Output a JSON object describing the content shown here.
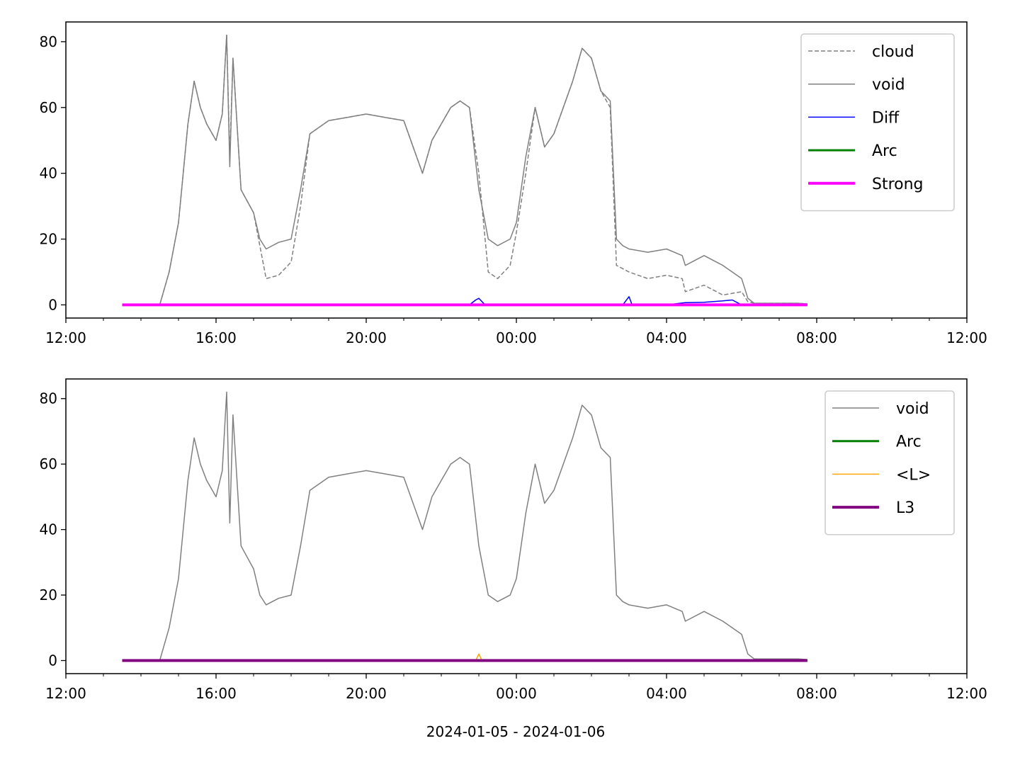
{
  "figure": {
    "xlabel": "2024-01-05 - 2024-01-06"
  },
  "chart_data": [
    {
      "type": "line",
      "title": "",
      "xlabel": "",
      "ylabel": "",
      "x_unit": "datetime",
      "xlim": [
        "2024-01-05T12:00",
        "2024-01-06T12:00"
      ],
      "ylim": [
        -4,
        86
      ],
      "x_ticks": [
        "12:00",
        "16:00",
        "20:00",
        "00:00",
        "04:00",
        "08:00",
        "12:00"
      ],
      "y_ticks": [
        0,
        20,
        40,
        60,
        80
      ],
      "grid": false,
      "legend_position": "top-right",
      "legend": [
        "cloud",
        "void",
        "Diff",
        "Arc",
        "Strong"
      ],
      "series": [
        {
          "name": "cloud",
          "color": "#808080",
          "style": "dashed",
          "x": [
            "2024-01-05T13:30",
            "2024-01-05T14:30",
            "2024-01-05T14:45",
            "2024-01-05T15:00",
            "2024-01-05T15:15",
            "2024-01-05T15:25",
            "2024-01-05T15:35",
            "2024-01-05T15:45",
            "2024-01-05T16:00",
            "2024-01-05T16:10",
            "2024-01-05T16:17",
            "2024-01-05T16:22",
            "2024-01-05T16:27",
            "2024-01-05T16:40",
            "2024-01-05T17:00",
            "2024-01-05T17:10",
            "2024-01-05T17:20",
            "2024-01-05T17:40",
            "2024-01-05T18:00",
            "2024-01-05T18:15",
            "2024-01-05T18:30",
            "2024-01-05T19:00",
            "2024-01-05T19:30",
            "2024-01-05T20:00",
            "2024-01-05T20:30",
            "2024-01-05T21:00",
            "2024-01-05T21:30",
            "2024-01-05T21:45",
            "2024-01-05T22:00",
            "2024-01-05T22:15",
            "2024-01-05T22:30",
            "2024-01-05T22:45",
            "2024-01-05T23:00",
            "2024-01-05T23:15",
            "2024-01-05T23:30",
            "2024-01-05T23:50",
            "2024-01-06T00:00",
            "2024-01-06T00:15",
            "2024-01-06T00:30",
            "2024-01-06T00:45",
            "2024-01-06T01:00",
            "2024-01-06T01:30",
            "2024-01-06T01:45",
            "2024-01-06T02:00",
            "2024-01-06T02:15",
            "2024-01-06T02:30",
            "2024-01-06T02:40",
            "2024-01-06T02:50",
            "2024-01-06T03:00",
            "2024-01-06T03:30",
            "2024-01-06T04:00",
            "2024-01-06T04:25",
            "2024-01-06T04:30",
            "2024-01-06T05:00",
            "2024-01-06T05:30",
            "2024-01-06T06:00",
            "2024-01-06T06:10",
            "2024-01-06T06:20",
            "2024-01-06T06:30",
            "2024-01-06T07:00",
            "2024-01-06T07:30",
            "2024-01-06T07:45"
          ],
          "y": [
            0,
            0,
            10,
            25,
            55,
            68,
            60,
            55,
            50,
            58,
            82,
            45,
            75,
            35,
            28,
            18,
            8,
            9,
            13,
            30,
            52,
            56,
            57,
            58,
            57,
            56,
            40,
            50,
            55,
            60,
            62,
            60,
            40,
            10,
            8,
            12,
            22,
            40,
            60,
            48,
            52,
            68,
            78,
            75,
            65,
            60,
            12,
            11,
            10,
            8,
            9,
            8,
            4,
            6,
            3,
            4,
            1,
            0.5,
            0.5,
            0.5,
            0.5,
            0.3
          ]
        },
        {
          "name": "void",
          "color": "#808080",
          "style": "solid",
          "x": [
            "2024-01-05T13:30",
            "2024-01-05T14:30",
            "2024-01-05T14:45",
            "2024-01-05T15:00",
            "2024-01-05T15:15",
            "2024-01-05T15:25",
            "2024-01-05T15:35",
            "2024-01-05T15:45",
            "2024-01-05T16:00",
            "2024-01-05T16:10",
            "2024-01-05T16:17",
            "2024-01-05T16:22",
            "2024-01-05T16:27",
            "2024-01-05T16:40",
            "2024-01-05T17:00",
            "2024-01-05T17:10",
            "2024-01-05T17:20",
            "2024-01-05T17:40",
            "2024-01-05T18:00",
            "2024-01-05T18:15",
            "2024-01-05T18:30",
            "2024-01-05T19:00",
            "2024-01-05T19:30",
            "2024-01-05T20:00",
            "2024-01-05T20:30",
            "2024-01-05T21:00",
            "2024-01-05T21:30",
            "2024-01-05T21:45",
            "2024-01-05T22:00",
            "2024-01-05T22:15",
            "2024-01-05T22:30",
            "2024-01-05T22:45",
            "2024-01-05T23:00",
            "2024-01-05T23:15",
            "2024-01-05T23:30",
            "2024-01-05T23:50",
            "2024-01-06T00:00",
            "2024-01-06T00:15",
            "2024-01-06T00:30",
            "2024-01-06T00:45",
            "2024-01-06T01:00",
            "2024-01-06T01:30",
            "2024-01-06T01:45",
            "2024-01-06T02:00",
            "2024-01-06T02:15",
            "2024-01-06T02:30",
            "2024-01-06T02:40",
            "2024-01-06T02:50",
            "2024-01-06T03:00",
            "2024-01-06T03:30",
            "2024-01-06T04:00",
            "2024-01-06T04:25",
            "2024-01-06T04:30",
            "2024-01-06T05:00",
            "2024-01-06T05:30",
            "2024-01-06T06:00",
            "2024-01-06T06:10",
            "2024-01-06T06:20",
            "2024-01-06T06:30",
            "2024-01-06T07:00",
            "2024-01-06T07:30",
            "2024-01-06T07:45"
          ],
          "y": [
            0,
            0,
            10,
            25,
            55,
            68,
            60,
            55,
            50,
            58,
            82,
            42,
            75,
            35,
            28,
            20,
            17,
            19,
            20,
            35,
            52,
            56,
            57,
            58,
            57,
            56,
            40,
            50,
            55,
            60,
            62,
            60,
            35,
            20,
            18,
            20,
            25,
            45,
            60,
            48,
            52,
            68,
            78,
            75,
            65,
            62,
            20,
            18,
            17,
            16,
            17,
            15,
            12,
            15,
            12,
            8,
            2,
            0.5,
            0.5,
            0.5,
            0.5,
            0.3
          ]
        },
        {
          "name": "Diff",
          "color": "#0000ff",
          "style": "solid",
          "x": [
            "2024-01-05T13:30",
            "2024-01-05T22:45",
            "2024-01-05T22:55",
            "2024-01-05T23:00",
            "2024-01-05T23:10",
            "2024-01-06T02:50",
            "2024-01-06T03:00",
            "2024-01-06T03:05",
            "2024-01-06T04:00",
            "2024-01-06T04:30",
            "2024-01-06T05:00",
            "2024-01-06T05:30",
            "2024-01-06T05:45",
            "2024-01-06T06:00",
            "2024-01-06T07:45"
          ],
          "y": [
            0,
            0,
            1.5,
            2,
            0,
            0,
            2.5,
            0,
            0,
            0.7,
            0.8,
            1.2,
            1.5,
            0,
            0
          ]
        },
        {
          "name": "Arc",
          "color": "#008000",
          "style": "solid",
          "x": [
            "2024-01-05T13:30",
            "2024-01-06T07:45"
          ],
          "y": [
            0,
            0
          ]
        },
        {
          "name": "Strong",
          "color": "#ff00ff",
          "style": "solid",
          "x": [
            "2024-01-05T13:30",
            "2024-01-06T07:45"
          ],
          "y": [
            0,
            0
          ]
        }
      ]
    },
    {
      "type": "line",
      "title": "",
      "xlabel": "2024-01-05 - 2024-01-06",
      "ylabel": "",
      "x_unit": "datetime",
      "xlim": [
        "2024-01-05T12:00",
        "2024-01-06T12:00"
      ],
      "ylim": [
        -4,
        86
      ],
      "x_ticks": [
        "12:00",
        "16:00",
        "20:00",
        "00:00",
        "04:00",
        "08:00",
        "12:00"
      ],
      "y_ticks": [
        0,
        20,
        40,
        60,
        80
      ],
      "grid": false,
      "legend_position": "top-right",
      "legend": [
        "void",
        "Arc",
        "<L>",
        "L3"
      ],
      "series": [
        {
          "name": "void",
          "color": "#808080",
          "style": "solid",
          "x": [
            "2024-01-05T13:30",
            "2024-01-05T14:30",
            "2024-01-05T14:45",
            "2024-01-05T15:00",
            "2024-01-05T15:15",
            "2024-01-05T15:25",
            "2024-01-05T15:35",
            "2024-01-05T15:45",
            "2024-01-05T16:00",
            "2024-01-05T16:10",
            "2024-01-05T16:17",
            "2024-01-05T16:22",
            "2024-01-05T16:27",
            "2024-01-05T16:40",
            "2024-01-05T17:00",
            "2024-01-05T17:10",
            "2024-01-05T17:20",
            "2024-01-05T17:40",
            "2024-01-05T18:00",
            "2024-01-05T18:15",
            "2024-01-05T18:30",
            "2024-01-05T19:00",
            "2024-01-05T19:30",
            "2024-01-05T20:00",
            "2024-01-05T20:30",
            "2024-01-05T21:00",
            "2024-01-05T21:30",
            "2024-01-05T21:45",
            "2024-01-05T22:00",
            "2024-01-05T22:15",
            "2024-01-05T22:30",
            "2024-01-05T22:45",
            "2024-01-05T23:00",
            "2024-01-05T23:15",
            "2024-01-05T23:30",
            "2024-01-05T23:50",
            "2024-01-06T00:00",
            "2024-01-06T00:15",
            "2024-01-06T00:30",
            "2024-01-06T00:45",
            "2024-01-06T01:00",
            "2024-01-06T01:30",
            "2024-01-06T01:45",
            "2024-01-06T02:00",
            "2024-01-06T02:15",
            "2024-01-06T02:30",
            "2024-01-06T02:40",
            "2024-01-06T02:50",
            "2024-01-06T03:00",
            "2024-01-06T03:30",
            "2024-01-06T04:00",
            "2024-01-06T04:25",
            "2024-01-06T04:30",
            "2024-01-06T05:00",
            "2024-01-06T05:30",
            "2024-01-06T06:00",
            "2024-01-06T06:10",
            "2024-01-06T06:20",
            "2024-01-06T06:30",
            "2024-01-06T07:00",
            "2024-01-06T07:30",
            "2024-01-06T07:45"
          ],
          "y": [
            0,
            0,
            10,
            25,
            55,
            68,
            60,
            55,
            50,
            58,
            82,
            42,
            75,
            35,
            28,
            20,
            17,
            19,
            20,
            35,
            52,
            56,
            57,
            58,
            57,
            56,
            40,
            50,
            55,
            60,
            62,
            60,
            35,
            20,
            18,
            20,
            25,
            45,
            60,
            48,
            52,
            68,
            78,
            75,
            65,
            62,
            20,
            18,
            17,
            16,
            17,
            15,
            12,
            15,
            12,
            8,
            2,
            0.5,
            0.5,
            0.5,
            0.5,
            0.3
          ]
        },
        {
          "name": "Arc",
          "color": "#008000",
          "style": "solid",
          "x": [
            "2024-01-05T13:30",
            "2024-01-06T07:45"
          ],
          "y": [
            0,
            0
          ]
        },
        {
          "name": "<L>",
          "color": "#ffa500",
          "style": "solid",
          "x": [
            "2024-01-05T13:30",
            "2024-01-05T22:55",
            "2024-01-05T23:00",
            "2024-01-05T23:05",
            "2024-01-06T07:45"
          ],
          "y": [
            0,
            0,
            2,
            0,
            0
          ]
        },
        {
          "name": "L3",
          "color": "#800080",
          "style": "solid",
          "x": [
            "2024-01-05T13:30",
            "2024-01-06T07:45"
          ],
          "y": [
            0,
            0
          ]
        }
      ]
    }
  ]
}
